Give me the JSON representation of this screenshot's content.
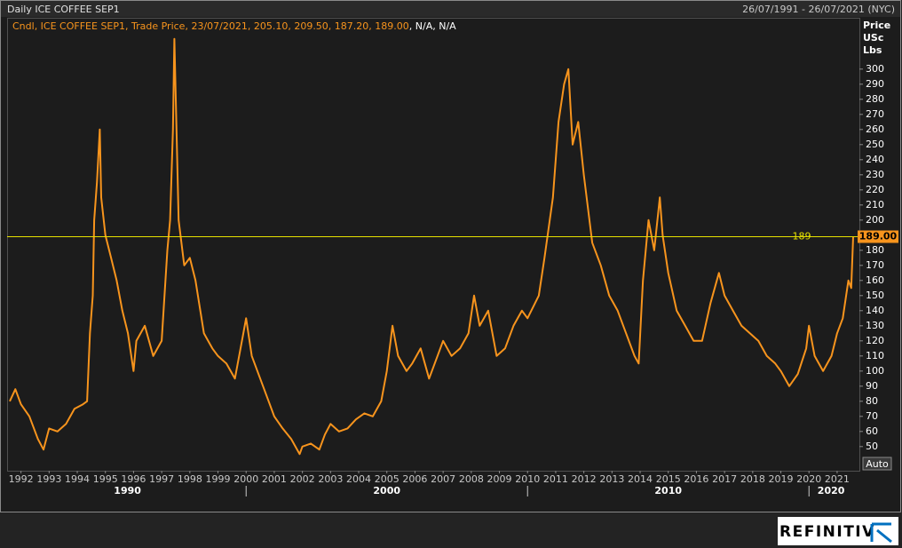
{
  "header": {
    "title": "Daily ICE COFFEE SEP1",
    "range": "26/07/1991 - 26/07/2021 (NYC)"
  },
  "legend": {
    "info": "Cndl, ICE COFFEE SEP1, Trade Price, 23/07/2021, 205.10, 209.50, 187.20, 189.00",
    "extra": ", N/A, N/A"
  },
  "chart_data": {
    "type": "line",
    "axis_label_lines": [
      "Price",
      "USc",
      "Lbs"
    ],
    "series": [
      {
        "name": "ICE COFFEE SEP1",
        "color": "#f7941d",
        "x": [
          1991.6,
          1991.8,
          1992.0,
          1992.3,
          1992.6,
          1992.8,
          1993.0,
          1993.3,
          1993.6,
          1993.9,
          1994.2,
          1994.35,
          1994.45,
          1994.55,
          1994.6,
          1994.7,
          1994.8,
          1994.85,
          1995.0,
          1995.2,
          1995.4,
          1995.6,
          1995.8,
          1996.0,
          1996.1,
          1996.4,
          1996.7,
          1997.0,
          1997.2,
          1997.3,
          1997.4,
          1997.45,
          1997.5,
          1997.6,
          1997.8,
          1998.0,
          1998.2,
          1998.5,
          1998.8,
          1999.0,
          1999.3,
          1999.6,
          1999.9,
          2000.0,
          2000.2,
          2000.5,
          2000.8,
          2001.0,
          2001.3,
          2001.6,
          2001.9,
          2002.0,
          2002.3,
          2002.6,
          2002.8,
          2003.0,
          2003.3,
          2003.6,
          2003.9,
          2004.2,
          2004.5,
          2004.8,
          2005.0,
          2005.2,
          2005.4,
          2005.7,
          2005.9,
          2006.2,
          2006.5,
          2006.8,
          2007.0,
          2007.3,
          2007.6,
          2007.9,
          2008.1,
          2008.3,
          2008.6,
          2008.9,
          2009.2,
          2009.5,
          2009.8,
          2010.0,
          2010.4,
          2010.6,
          2010.9,
          2011.1,
          2011.3,
          2011.45,
          2011.6,
          2011.8,
          2012.0,
          2012.3,
          2012.6,
          2012.9,
          2013.2,
          2013.5,
          2013.8,
          2013.95,
          2014.1,
          2014.3,
          2014.5,
          2014.7,
          2014.8,
          2015.0,
          2015.3,
          2015.6,
          2015.9,
          2016.2,
          2016.5,
          2016.8,
          2017.0,
          2017.3,
          2017.6,
          2017.9,
          2018.2,
          2018.5,
          2018.8,
          2019.0,
          2019.3,
          2019.6,
          2019.9,
          2020.0,
          2020.2,
          2020.5,
          2020.8,
          2021.0,
          2021.2,
          2021.4,
          2021.5,
          2021.57
        ],
        "values": [
          80,
          88,
          78,
          70,
          55,
          48,
          62,
          60,
          65,
          75,
          78,
          80,
          125,
          150,
          200,
          225,
          260,
          215,
          190,
          175,
          160,
          140,
          125,
          100,
          120,
          130,
          110,
          120,
          180,
          200,
          260,
          320,
          280,
          200,
          170,
          175,
          160,
          125,
          115,
          110,
          105,
          95,
          125,
          135,
          110,
          95,
          80,
          70,
          62,
          55,
          45,
          50,
          52,
          48,
          58,
          65,
          60,
          62,
          68,
          72,
          70,
          80,
          100,
          130,
          110,
          100,
          105,
          115,
          95,
          110,
          120,
          110,
          115,
          125,
          150,
          130,
          140,
          110,
          115,
          130,
          140,
          135,
          150,
          175,
          215,
          265,
          290,
          300,
          250,
          265,
          230,
          185,
          170,
          150,
          140,
          125,
          110,
          105,
          160,
          200,
          180,
          215,
          190,
          165,
          140,
          130,
          120,
          120,
          145,
          165,
          150,
          140,
          130,
          125,
          120,
          110,
          105,
          100,
          90,
          98,
          115,
          130,
          110,
          100,
          110,
          125,
          135,
          160,
          155,
          189
        ]
      }
    ],
    "xlim": [
      1991.57,
      2021.57
    ],
    "ylim": [
      34,
      334
    ],
    "xticks": [
      1992,
      1993,
      1994,
      1995,
      1996,
      1997,
      1998,
      1999,
      2000,
      2001,
      2002,
      2003,
      2004,
      2005,
      2006,
      2007,
      2008,
      2009,
      2010,
      2011,
      2012,
      2013,
      2014,
      2015,
      2016,
      2017,
      2018,
      2019,
      2020,
      2021
    ],
    "decades": [
      1990,
      2000,
      2010,
      2020
    ],
    "yticks": [
      50,
      60,
      70,
      80,
      90,
      100,
      110,
      120,
      130,
      140,
      150,
      160,
      170,
      180,
      190,
      200,
      210,
      220,
      230,
      240,
      250,
      260,
      270,
      280,
      290,
      300
    ],
    "hline": {
      "value": 189,
      "label": "189",
      "price_label": "189.00",
      "color": "#e5e000"
    },
    "button": "Auto",
    "brand": "REFINITIV"
  }
}
